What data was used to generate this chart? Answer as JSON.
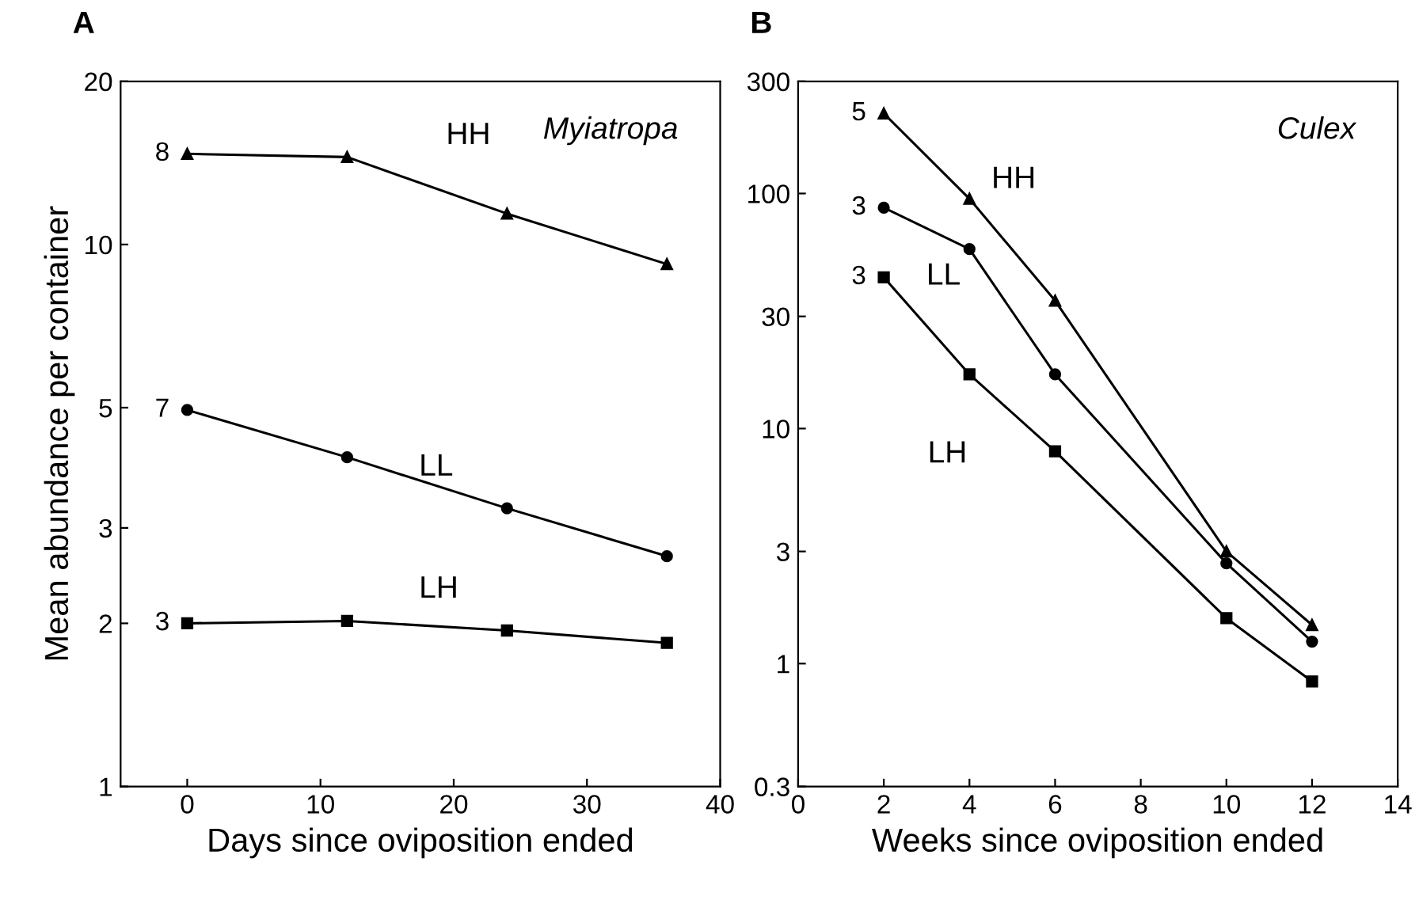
{
  "chart_data": [
    {
      "type": "line",
      "title": "A",
      "xlabel": "Days since oviposition ended",
      "ylabel": "Mean abundance per container",
      "log": "y",
      "xlim": [
        -5,
        40
      ],
      "xticks": [
        0,
        10,
        20,
        30,
        40
      ],
      "ylim": [
        1,
        20
      ],
      "yticks": [
        1,
        2,
        3,
        5,
        10,
        20
      ],
      "grid": false,
      "legend": false,
      "line_style": "solid",
      "x": [
        0,
        12,
        24,
        36
      ],
      "series": [
        {
          "name": "HH",
          "color": "#000000",
          "marker": "triangle",
          "values": [
            14.7,
            14.5,
            11.4,
            9.2
          ]
        },
        {
          "name": "LL",
          "color": "#000000",
          "marker": "circle",
          "values": [
            4.95,
            4.05,
            3.26,
            2.66
          ]
        },
        {
          "name": "LH",
          "color": "#000000",
          "marker": "square",
          "values": [
            2.0,
            2.02,
            1.94,
            1.84
          ]
        }
      ],
      "annotations": [
        "Myiatropa",
        "8",
        "7",
        "3"
      ]
    },
    {
      "type": "line",
      "title": "B",
      "xlabel": "Weeks since oviposition ended",
      "log": "y",
      "xlim": [
        0,
        14
      ],
      "xticks": [
        0,
        2,
        4,
        6,
        8,
        10,
        12,
        14
      ],
      "ylim": [
        0.3,
        300
      ],
      "yticks": [
        0.3,
        1,
        3,
        10,
        30,
        100,
        300
      ],
      "grid": false,
      "legend": false,
      "line_style": "solid",
      "x": [
        2,
        4,
        6,
        10,
        12
      ],
      "series": [
        {
          "name": "HH",
          "color": "#000000",
          "marker": "triangle",
          "values": [
            219,
            95,
            35,
            3.0,
            1.46
          ]
        },
        {
          "name": "LL",
          "color": "#000000",
          "marker": "circle",
          "values": [
            87,
            58,
            17,
            2.67,
            1.24
          ]
        },
        {
          "name": "LH",
          "color": "#000000",
          "marker": "square",
          "values": [
            44,
            17,
            8.0,
            1.56,
            0.84
          ]
        }
      ],
      "annotations": [
        "Culex",
        "5",
        "3",
        "3"
      ]
    }
  ]
}
